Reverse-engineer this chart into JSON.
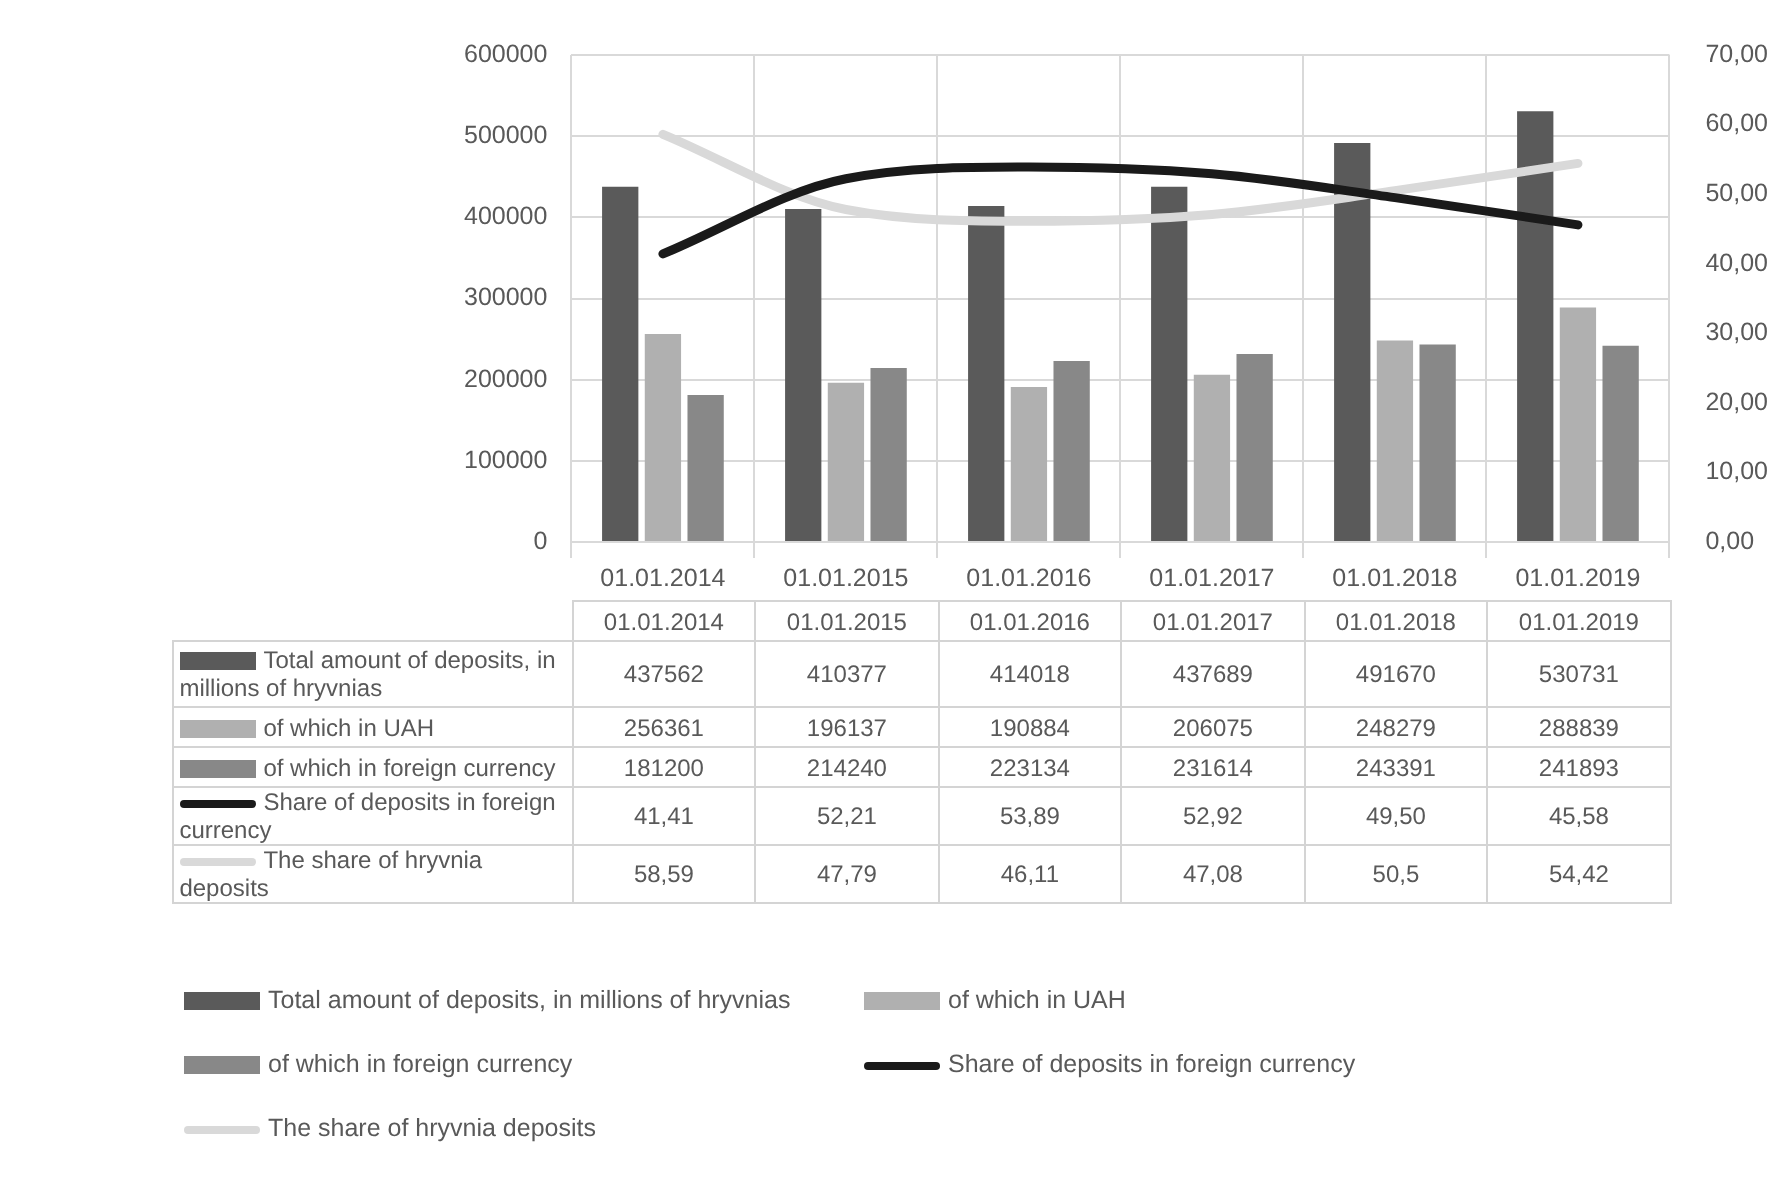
{
  "chart_data": {
    "type": "bar",
    "categories": [
      "01.01.2014",
      "01.01.2015",
      "01.01.2016",
      "01.01.2017",
      "01.01.2018",
      "01.01.2019"
    ],
    "series": [
      {
        "name": "Total amount of deposits, in millions of hryvnias",
        "color": "#5a5a5a",
        "values": [
          437562,
          410377,
          414018,
          437689,
          491670,
          530731
        ],
        "value_labels": [
          "437562",
          "410377",
          "414018",
          "437689",
          "491670",
          "530731"
        ]
      },
      {
        "name": "of which in UAH",
        "color": "#b0b0b0",
        "values": [
          256361,
          196137,
          190884,
          206075,
          248279,
          288839
        ],
        "value_labels": [
          "256361",
          "196137",
          "190884",
          "206075",
          "248279",
          "288839"
        ]
      },
      {
        "name": "of which in foreign currency",
        "color": "#888888",
        "values": [
          181200,
          214240,
          223134,
          231614,
          243391,
          241893
        ],
        "value_labels": [
          "181200",
          "214240",
          "223134",
          "231614",
          "243391",
          "241893"
        ]
      },
      {
        "name": "Share of deposits in foreign currency",
        "type": "line",
        "axis": "y2",
        "color": "#1a1a1a",
        "values": [
          41.41,
          52.21,
          53.89,
          52.92,
          49.5,
          45.58
        ],
        "value_labels": [
          "41,41",
          "52,21",
          "53,89",
          "52,92",
          "49,50",
          "45,58"
        ]
      },
      {
        "name": "The share of hryvnia deposits",
        "type": "line",
        "axis": "y2",
        "color": "#d9d9d9",
        "values": [
          58.59,
          47.79,
          46.11,
          47.08,
          50.5,
          54.42
        ],
        "value_labels": [
          "58,59",
          "47,79",
          "46,11",
          "47,08",
          "50,5",
          "54,42"
        ]
      }
    ],
    "ylim": [
      0,
      600000
    ],
    "yticks": [
      0,
      100000,
      200000,
      300000,
      400000,
      500000,
      600000
    ],
    "y2lim": [
      0,
      70
    ],
    "y2ticks": [
      {
        "value": 0,
        "label": "0,00"
      },
      {
        "value": 10,
        "label": "10,00"
      },
      {
        "value": 20,
        "label": "20,00"
      },
      {
        "value": 30,
        "label": "30,00"
      },
      {
        "value": 40,
        "label": "40,00"
      },
      {
        "value": 50,
        "label": "50,00"
      },
      {
        "value": 60,
        "label": "60,00"
      },
      {
        "value": 70,
        "label": "70,00"
      }
    ],
    "grid": true,
    "legend": "bottom",
    "data_labels": true,
    "marker": "none"
  }
}
